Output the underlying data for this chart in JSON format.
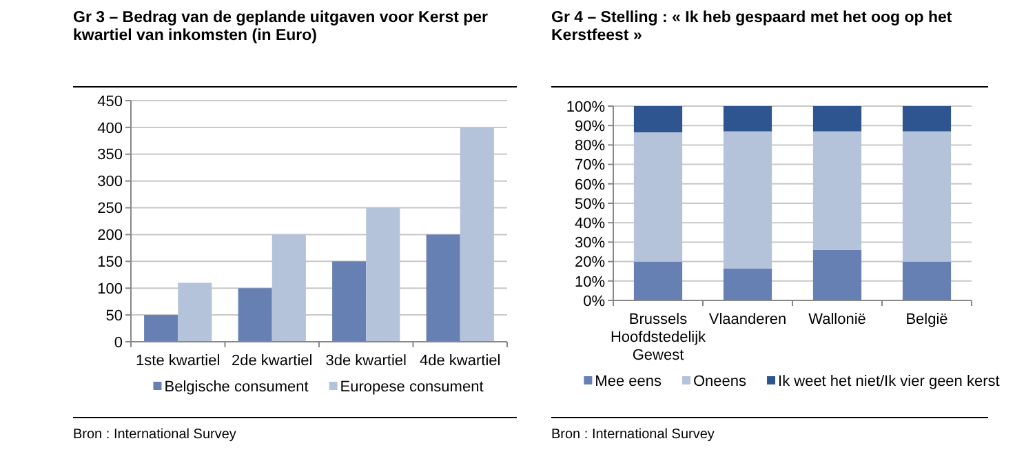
{
  "chart_data": [
    {
      "type": "bar",
      "title": "Gr 3 –   Bedrag van de geplande uitgaven voor Kerst per kwartiel van inkomsten (in Euro)",
      "categories": [
        "1ste kwartiel",
        "2de kwartiel",
        "3de kwartiel",
        "4de kwartiel"
      ],
      "series": [
        {
          "name": "Belgische consument",
          "color": "#6680b3",
          "values": [
            50,
            100,
            150,
            200
          ]
        },
        {
          "name": "Europese consument",
          "color": "#b4c3da",
          "values": [
            110,
            200,
            250,
            400
          ]
        }
      ],
      "ylim": [
        0,
        450
      ],
      "yticks": [
        0,
        50,
        100,
        150,
        200,
        250,
        300,
        350,
        400,
        450
      ],
      "grid": "y",
      "legend": "bottom",
      "annotations": [
        "Bron : International Survey"
      ]
    },
    {
      "type": "bar",
      "stacked": true,
      "title": "Gr 4 – Stelling : « Ik heb gespaard met het oog op het Kerstfeest »",
      "categories": [
        "Brussels Hoofdstedelijk Gewest",
        "Vlaanderen",
        "Wallonië",
        "België"
      ],
      "series": [
        {
          "name": "Mee eens",
          "color": "#6680b3",
          "values": [
            20,
            16.5,
            26,
            20
          ]
        },
        {
          "name": "Oneens",
          "color": "#b4c3da",
          "values": [
            66.5,
            70.5,
            61,
            67
          ]
        },
        {
          "name": "Ik weet het niet/Ik vier geen kerst",
          "color": "#2e5590",
          "values": [
            13.5,
            13,
            13,
            13
          ]
        }
      ],
      "ylim": [
        0,
        100
      ],
      "yticks": [
        {
          "value": 0,
          "label": "0%"
        },
        {
          "value": 10,
          "label": "10%"
        },
        {
          "value": 20,
          "label": "20%"
        },
        {
          "value": 30,
          "label": "30%"
        },
        {
          "value": 40,
          "label": "40%"
        },
        {
          "value": 50,
          "label": "50%"
        },
        {
          "value": 60,
          "label": "60%"
        },
        {
          "value": 70,
          "label": "70%"
        },
        {
          "value": 80,
          "label": "80%"
        },
        {
          "value": 90,
          "label": "90%"
        },
        {
          "value": 100,
          "label": "100%"
        }
      ],
      "grid": "y",
      "legend": "bottom",
      "annotations": [
        "Bron : International Survey"
      ]
    }
  ]
}
